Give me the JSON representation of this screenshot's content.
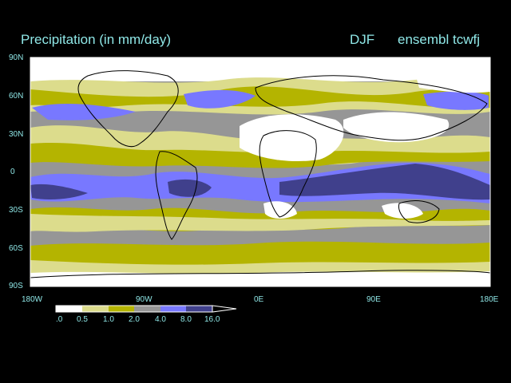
{
  "header": {
    "title": "Precipitation (in mm/day)",
    "season": "DJF",
    "dataset": "ensembl tcwfj"
  },
  "map": {
    "projection": "cylindrical equidistant",
    "lon_labels": [
      "180W",
      "90W",
      "0E",
      "90E",
      "180E"
    ],
    "lat_labels": [
      "90N",
      "60N",
      "30N",
      "0",
      "30S",
      "60S",
      "90S"
    ]
  },
  "colorbar": {
    "labels": [
      ".0",
      "0.5",
      "1.0",
      "2.0",
      "4.0",
      "8.0",
      "16.0"
    ],
    "colors": [
      "#ffffff",
      "#dcdc8c",
      "#b4b400",
      "#969696",
      "#7878ff",
      "#40408c"
    ]
  }
}
